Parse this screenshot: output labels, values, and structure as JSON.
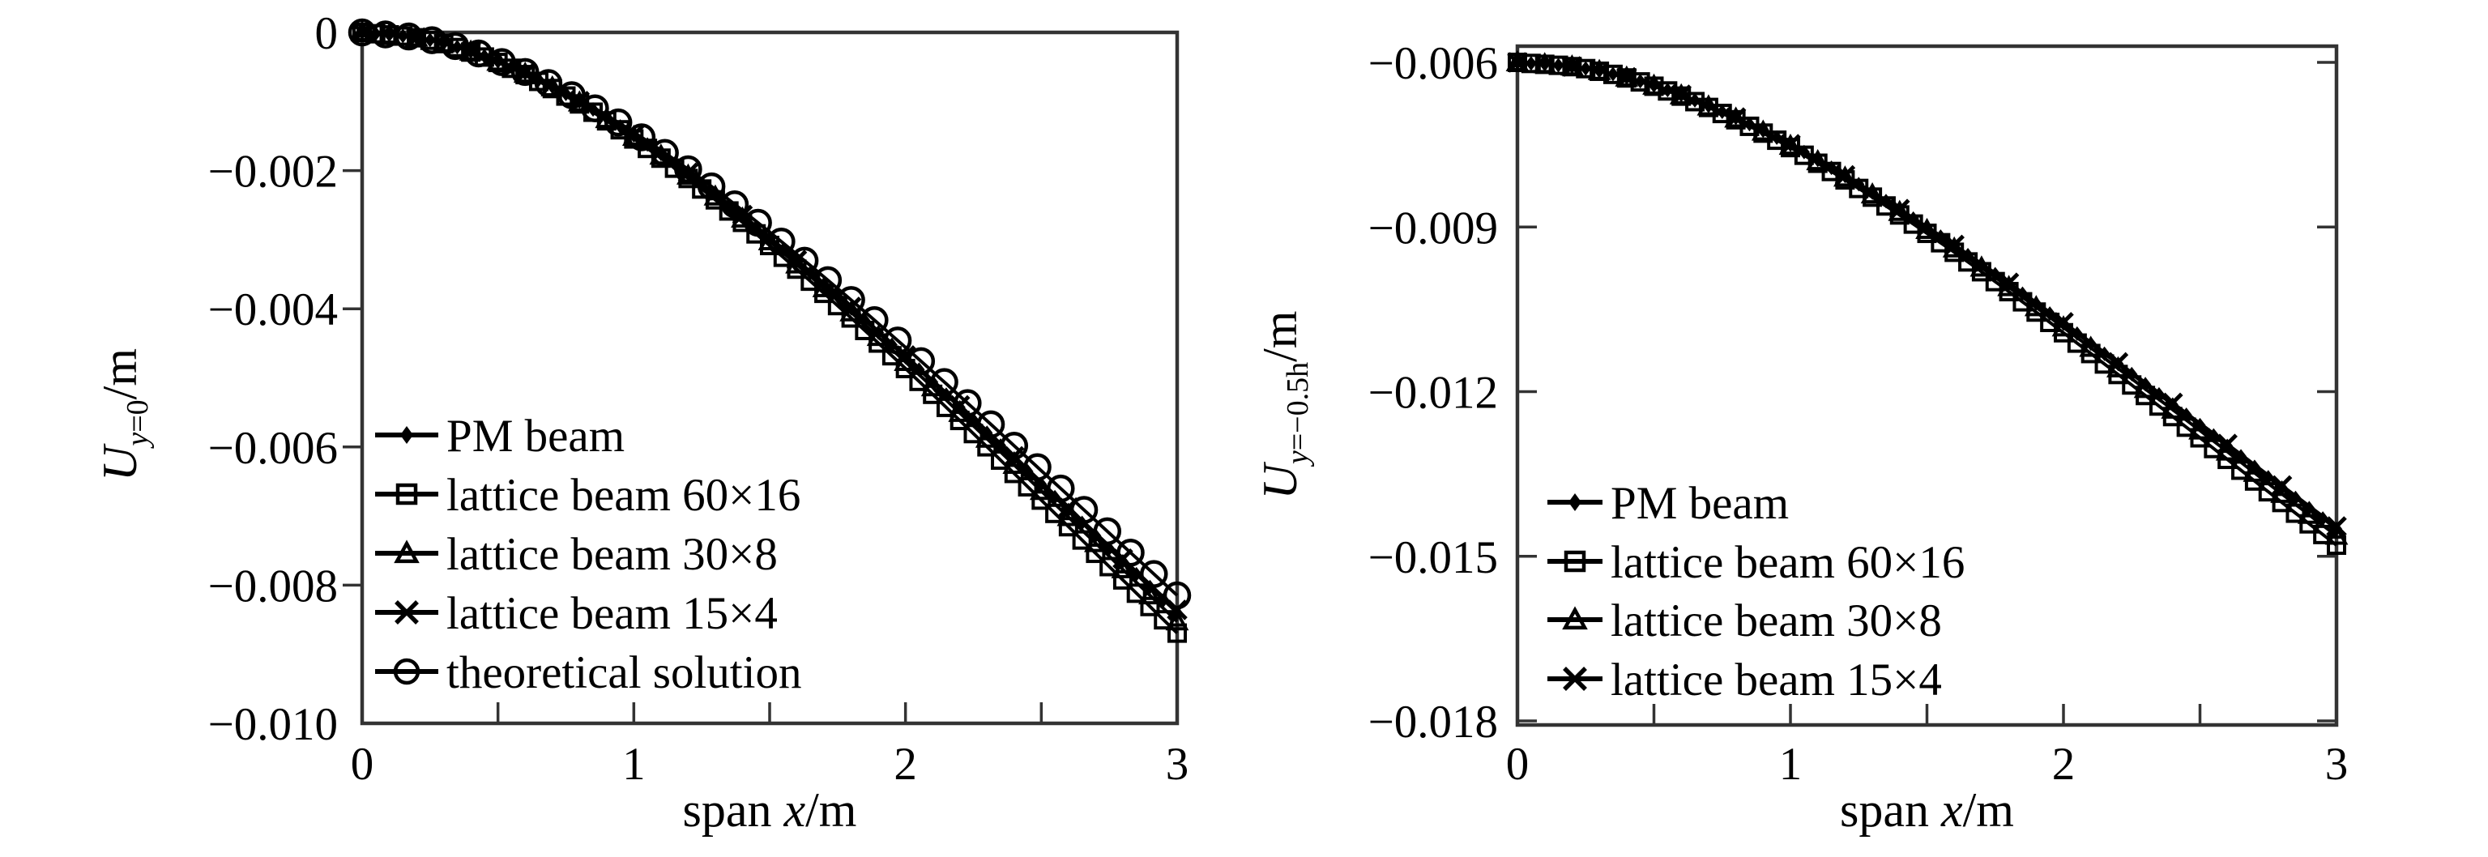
{
  "figure": {
    "background": "#ffffff",
    "ink_color": "#000000",
    "axis_color": "#333333"
  },
  "chart_data": [
    {
      "type": "line",
      "panel": "left",
      "title": "",
      "xlabel": "span x/m",
      "xlabel_parts": {
        "prefix": "span ",
        "variable": "x",
        "unit": "/m"
      },
      "ylabel": "U_{y=0}/m",
      "ylabel_parts": {
        "symbol": "U",
        "sub_var": "y",
        "sub_rest": "=0",
        "unit": "/m"
      },
      "xlim": [
        0,
        3
      ],
      "ylim": [
        -0.01,
        0
      ],
      "grid": false,
      "legend_position": "inside-lower-left",
      "x_tick_labels": [
        "0",
        "1",
        "2",
        "3"
      ],
      "x_tick_values": [
        0,
        1,
        2,
        3
      ],
      "x_tick_marks": [
        0.5,
        1,
        1.5,
        2,
        2.5
      ],
      "y_tick_values": [
        0,
        -0.002,
        -0.004,
        -0.006,
        -0.008,
        -0.01
      ],
      "y_tick_labels": [
        "0",
        "−0.002",
        "−0.004",
        "−0.006",
        "−0.008",
        "−0.010"
      ],
      "baseline": 0,
      "profile": {
        "x": [
          0,
          0.25,
          0.5,
          0.75,
          1,
          1.25,
          1.5,
          1.75,
          2,
          2.25,
          2.5,
          2.75,
          3
        ],
        "values": [
          0,
          -0.00011,
          -0.00042,
          -0.00089,
          -0.00149,
          -0.00219,
          -0.00298,
          -0.00382,
          -0.0047,
          -0.00561,
          -0.00654,
          -0.00747,
          -0.0084
        ]
      },
      "series": [
        {
          "name": "PM beam",
          "marker": "diamond-filled",
          "marker_count": 61,
          "offset_scale": 1.0
        },
        {
          "name": "lattice beam 60×16",
          "marker": "square-open",
          "marker_count": 61,
          "offset_scale": 1.035
        },
        {
          "name": "lattice beam 30×8",
          "marker": "triangle-open",
          "marker_count": 31,
          "offset_scale": 1.015
        },
        {
          "name": "lattice beam 15×4",
          "marker": "x-cross",
          "marker_count": 16,
          "offset_scale": 0.995
        },
        {
          "name": "theoretical solution",
          "marker": "circle-open",
          "marker_count": 36,
          "offset_scale": 0.97
        }
      ]
    },
    {
      "type": "line",
      "panel": "right",
      "title": "",
      "xlabel": "span x/m",
      "xlabel_parts": {
        "prefix": "span ",
        "variable": "x",
        "unit": "/m"
      },
      "ylabel": "U_{y=-0.5h}/m",
      "ylabel_parts": {
        "symbol": "U",
        "sub_var": "y",
        "sub_rest": "=−0.5h",
        "unit": "/m"
      },
      "xlim": [
        0,
        3
      ],
      "ylim": [
        -0.018,
        -0.006
      ],
      "grid": false,
      "legend_position": "inside-lower-left",
      "x_tick_labels": [
        "0",
        "1",
        "2",
        "3"
      ],
      "x_tick_values": [
        0,
        1,
        2,
        3
      ],
      "x_tick_marks": [
        0.5,
        1,
        1.5,
        2,
        2.5
      ],
      "y_tick_values": [
        -0.006,
        -0.009,
        -0.012,
        -0.015,
        -0.018
      ],
      "y_tick_labels": [
        "−0.006",
        "−0.009",
        "−0.012",
        "−0.015",
        "−0.018"
      ],
      "baseline": -0.006,
      "profile": {
        "x": [
          0,
          0.25,
          0.5,
          0.75,
          1,
          1.25,
          1.5,
          1.75,
          2,
          2.25,
          2.5,
          2.75,
          3
        ],
        "values": [
          -0.006,
          -0.00611,
          -0.00642,
          -0.0069,
          -0.0075,
          -0.00822,
          -0.00901,
          -0.00986,
          -0.01076,
          -0.01168,
          -0.01261,
          -0.01356,
          -0.0145
        ]
      },
      "series": [
        {
          "name": "PM beam",
          "marker": "diamond-filled",
          "marker_count": 61,
          "offset_scale": 1.0
        },
        {
          "name": "lattice beam 60×16",
          "marker": "square-open",
          "marker_count": 61,
          "offset_scale": 1.035
        },
        {
          "name": "lattice beam 30×8",
          "marker": "triangle-open",
          "marker_count": 31,
          "offset_scale": 1.015
        },
        {
          "name": "lattice beam 15×4",
          "marker": "x-cross",
          "marker_count": 16,
          "offset_scale": 0.995
        }
      ]
    }
  ]
}
